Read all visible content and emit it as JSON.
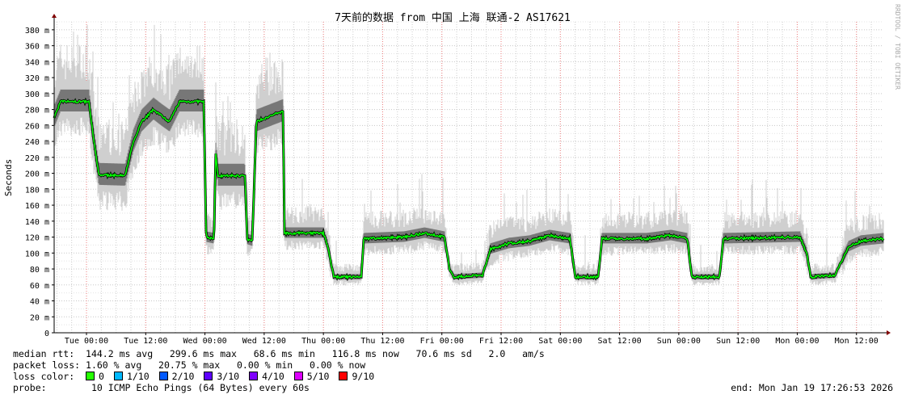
{
  "chart_data": {
    "type": "line",
    "title": "7天前的数据 from 中国 上海 联通-2 AS17621",
    "ylabel": "Seconds",
    "ylim": [
      0,
      390
    ],
    "y_ticks": [
      0,
      20,
      40,
      60,
      80,
      100,
      120,
      140,
      160,
      180,
      200,
      220,
      240,
      260,
      280,
      300,
      320,
      340,
      360,
      380
    ],
    "y_tick_labels": [
      "0",
      "20 m",
      "40 m",
      "60 m",
      "80 m",
      "100 m",
      "120 m",
      "140 m",
      "160 m",
      "180 m",
      "200 m",
      "220 m",
      "240 m",
      "260 m",
      "280 m",
      "300 m",
      "320 m",
      "340 m",
      "360 m",
      "380 m"
    ],
    "xlim": [
      "2026-01-12T17:26:53",
      "2026-01-19T17:26:53"
    ],
    "x_ticks": [
      "2026-01-13T00:00",
      "2026-01-13T12:00",
      "2026-01-14T00:00",
      "2026-01-14T12:00",
      "2026-01-15T00:00",
      "2026-01-15T12:00",
      "2026-01-16T00:00",
      "2026-01-16T12:00",
      "2026-01-17T00:00",
      "2026-01-17T12:00",
      "2026-01-18T00:00",
      "2026-01-18T12:00",
      "2026-01-19T00:00",
      "2026-01-19T12:00"
    ],
    "x_tick_labels": [
      "Tue 00:00",
      "Tue 12:00",
      "Wed 00:00",
      "Wed 12:00",
      "Thu 00:00",
      "Thu 12:00",
      "Fri 00:00",
      "Fri 12:00",
      "Sat 00:00",
      "Sat 12:00",
      "Sun 00:00",
      "Sun 12:00",
      "Mon 00:00",
      "Mon 12:00"
    ],
    "grid": true,
    "series": [
      {
        "name": "median rtt",
        "unit": "ms",
        "color": "#00ff00",
        "points": [
          [
            "2026-01-12T17:27",
            270
          ],
          [
            "2026-01-12T18:45",
            290
          ],
          [
            "2026-01-13T00:30",
            290
          ],
          [
            "2026-01-13T01:30",
            240
          ],
          [
            "2026-01-13T02:30",
            198
          ],
          [
            "2026-01-13T07:50",
            197
          ],
          [
            "2026-01-13T09:30",
            240
          ],
          [
            "2026-01-13T11:10",
            265
          ],
          [
            "2026-01-13T13:35",
            280
          ],
          [
            "2026-01-13T15:15",
            272
          ],
          [
            "2026-01-13T16:50",
            265
          ],
          [
            "2026-01-13T18:50",
            290
          ],
          [
            "2026-01-13T23:45",
            290
          ],
          [
            "2026-01-14T00:15",
            120
          ],
          [
            "2026-01-14T01:50",
            118
          ],
          [
            "2026-01-14T02:10",
            225
          ],
          [
            "2026-01-14T02:40",
            197
          ],
          [
            "2026-01-14T08:05",
            197
          ],
          [
            "2026-01-14T08:35",
            117
          ],
          [
            "2026-01-14T09:35",
            115
          ],
          [
            "2026-01-14T10:25",
            265
          ],
          [
            "2026-01-14T15:50",
            278
          ],
          [
            "2026-01-14T16:07",
            125
          ],
          [
            "2026-01-15T00:00",
            125
          ],
          [
            "2026-01-15T00:48",
            110
          ],
          [
            "2026-01-15T02:06",
            70
          ],
          [
            "2026-01-15T07:40",
            70
          ],
          [
            "2026-01-15T08:10",
            118
          ],
          [
            "2026-01-15T16:21",
            120
          ],
          [
            "2026-01-15T20:30",
            125
          ],
          [
            "2026-01-16T00:32",
            120
          ],
          [
            "2026-01-16T01:32",
            80
          ],
          [
            "2026-01-16T02:30",
            70
          ],
          [
            "2026-01-16T08:14",
            72
          ],
          [
            "2026-01-16T09:52",
            105
          ],
          [
            "2026-01-16T13:36",
            112
          ],
          [
            "2026-01-16T17:44",
            115
          ],
          [
            "2026-01-16T21:50",
            122
          ],
          [
            "2026-01-17T01:55",
            118
          ],
          [
            "2026-01-17T03:04",
            70
          ],
          [
            "2026-01-17T07:40",
            70
          ],
          [
            "2026-01-17T08:28",
            118
          ],
          [
            "2026-01-17T17:29",
            118
          ],
          [
            "2026-01-17T22:25",
            122
          ],
          [
            "2026-01-18T01:42",
            118
          ],
          [
            "2026-01-18T02:40",
            70
          ],
          [
            "2026-01-18T08:13",
            70
          ],
          [
            "2026-01-18T09:02",
            118
          ],
          [
            "2026-01-19T00:35",
            120
          ],
          [
            "2026-01-19T01:54",
            100
          ],
          [
            "2026-01-19T02:43",
            70
          ],
          [
            "2026-01-19T07:37",
            72
          ],
          [
            "2026-01-19T10:24",
            108
          ],
          [
            "2026-01-19T12:53",
            115
          ],
          [
            "2026-01-19T17:26",
            118
          ]
        ]
      }
    ]
  },
  "watermark": "RRDTOOL / TOBI OETIKER",
  "legend": {
    "median_label": "median rtt:",
    "median_values": "144.2 ms avg   299.6 ms max   68.6 ms min   116.8 ms now   70.6 ms sd   2.0   am/s",
    "loss_label": "packet loss:",
    "loss_values": "1.60 % avg   20.75 % max   0.00 % min   0.00 % now",
    "color_label": "loss color:",
    "loss_colors": [
      {
        "label": "0",
        "color": "#26ff00"
      },
      {
        "label": "1/10",
        "color": "#00b8ff"
      },
      {
        "label": "2/10",
        "color": "#0059ff"
      },
      {
        "label": "3/10",
        "color": "#5e00ff"
      },
      {
        "label": "4/10",
        "color": "#7e00ff"
      },
      {
        "label": "5/10",
        "color": "#dd00ff"
      },
      {
        "label": "9/10",
        "color": "#ff0000"
      }
    ],
    "probe_label": "probe:",
    "probe_value": "10 ICMP Echo Pings (64 Bytes) every 60s",
    "end": "end: Mon Jan 19 17:26:53 2026"
  }
}
